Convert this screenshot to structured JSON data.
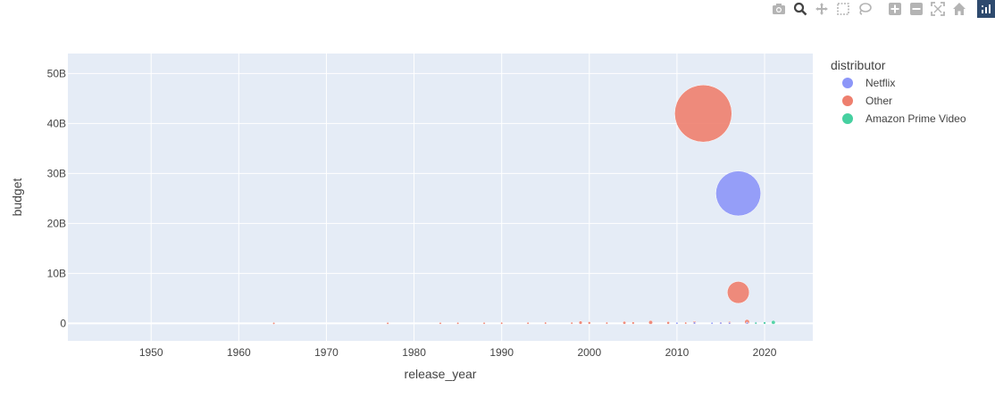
{
  "chart_data": {
    "type": "scatter",
    "subtype": "bubble",
    "xlabel": "release_year",
    "ylabel": "budget",
    "xlim": [
      1940.5,
      2025.5
    ],
    "ylim": [
      -3500000000,
      54000000000
    ],
    "x_ticks": [
      1950,
      1960,
      1970,
      1980,
      1990,
      2000,
      2010,
      2020
    ],
    "y_ticks": [
      {
        "value": 0,
        "label": "0"
      },
      {
        "value": 10000000000,
        "label": "10B"
      },
      {
        "value": 20000000000,
        "label": "20B"
      },
      {
        "value": 30000000000,
        "label": "30B"
      },
      {
        "value": 40000000000,
        "label": "40B"
      },
      {
        "value": 50000000000,
        "label": "50B"
      }
    ],
    "grid": true,
    "legend": {
      "title": "distributor",
      "placement": "right"
    },
    "size_max_value": 42000000000,
    "series": [
      {
        "name": "Netflix",
        "color": "#8c96f8",
        "points": [
          {
            "x": 2017,
            "y": 26000000000
          },
          {
            "x": 2018,
            "y": 50000000
          },
          {
            "x": 2019,
            "y": 100000000
          },
          {
            "x": 2020,
            "y": 80000000
          },
          {
            "x": 2016,
            "y": 40000000
          },
          {
            "x": 2015,
            "y": 60000000
          },
          {
            "x": 2014,
            "y": 30000000
          },
          {
            "x": 2012,
            "y": 70000000
          },
          {
            "x": 2010,
            "y": 40000000
          }
        ]
      },
      {
        "name": "Other",
        "color": "#ee7f6e",
        "points": [
          {
            "x": 2013,
            "y": 42000000000
          },
          {
            "x": 2017,
            "y": 6200000000
          },
          {
            "x": 2018,
            "y": 300000000
          },
          {
            "x": 2007,
            "y": 200000000
          },
          {
            "x": 2012,
            "y": 150000000
          },
          {
            "x": 2004,
            "y": 120000000
          },
          {
            "x": 1999,
            "y": 150000000
          },
          {
            "x": 2000,
            "y": 90000000
          },
          {
            "x": 1995,
            "y": 60000000
          },
          {
            "x": 1998,
            "y": 50000000
          },
          {
            "x": 2002,
            "y": 60000000
          },
          {
            "x": 2005,
            "y": 80000000
          },
          {
            "x": 2009,
            "y": 100000000
          },
          {
            "x": 2011,
            "y": 60000000
          },
          {
            "x": 2015,
            "y": 90000000
          },
          {
            "x": 2016,
            "y": 120000000
          },
          {
            "x": 1985,
            "y": 20000000
          },
          {
            "x": 1988,
            "y": 25000000
          },
          {
            "x": 1990,
            "y": 30000000
          },
          {
            "x": 1993,
            "y": 35000000
          },
          {
            "x": 1983,
            "y": 15000000
          },
          {
            "x": 1977,
            "y": 10000000
          },
          {
            "x": 1964,
            "y": 5000000
          }
        ]
      },
      {
        "name": "Amazon Prime Video",
        "color": "#46d0a0",
        "points": [
          {
            "x": 2021,
            "y": 200000000
          },
          {
            "x": 2019,
            "y": 50000000
          },
          {
            "x": 2020,
            "y": 80000000
          }
        ]
      }
    ]
  },
  "modebar": {
    "buttons": [
      "camera-icon",
      "zoom-icon",
      "pan-icon",
      "box-select-icon",
      "lasso-select-icon",
      "zoom-in-icon",
      "zoom-out-icon",
      "autoscale-icon",
      "reset-axes-icon"
    ]
  }
}
